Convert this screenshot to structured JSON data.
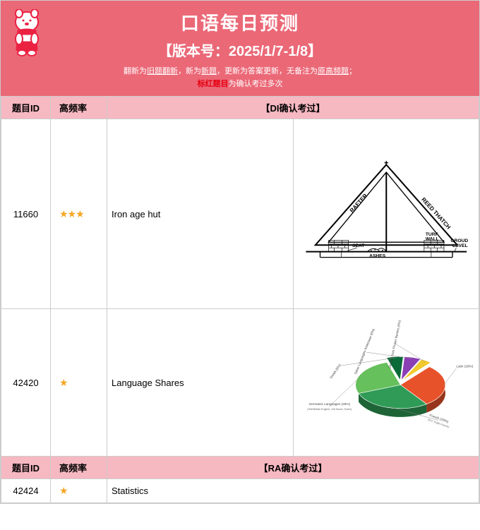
{
  "header": {
    "title": "口语每日预测",
    "version": "【版本号：2025/1/7-1/8】",
    "note1_pre": "翻新为",
    "note1_u1": "旧题翻新",
    "note1_mid1": "，新为",
    "note1_u2": "新题",
    "note1_mid2": "，更新为答案更新，无备注为",
    "note1_u3": "原高频题",
    "note1_post": "；",
    "note2_red": "标红题目",
    "note2_rest": "为确认考过多次"
  },
  "columns": {
    "id": "题目ID",
    "freq": "高频率",
    "di_header": "【DI确认考过】",
    "ra_header": "【RA确认考过】"
  },
  "rows": [
    {
      "id": "11660",
      "stars": 3,
      "name": "Iron age hut"
    },
    {
      "id": "42420",
      "stars": 1,
      "name": "Language Shares"
    },
    {
      "id": "42424",
      "stars": 1,
      "name": "Statistics"
    }
  ],
  "hut_diagram": {
    "labels": {
      "rafter": "RAFTER",
      "reed": "REED THATCH",
      "seat": "SEAT",
      "ashes": "ASHES",
      "turf": "TURF WALL",
      "ground": "GROUD LEVEL"
    },
    "stroke": "#000000",
    "fill": "#ffffff"
  },
  "pie_chart": {
    "slices": [
      {
        "label": "Latin (29%)",
        "value": 29,
        "color": "#e8522a"
      },
      {
        "label": "French (29%)",
        "value": 29,
        "color": "#2f9b56"
      },
      {
        "label": "Germanic Languages (26%)",
        "value": 26,
        "color": "#66c05b"
      },
      {
        "label": "Greek (6%)",
        "value": 6,
        "color": "#0a6a38"
      },
      {
        "label": "Other Languages /Unknown (6%)",
        "value": 6,
        "color": "#8b3fb5"
      },
      {
        "label": "Derived from Proper Names (4%)",
        "value": 4,
        "color": "#f2c92d"
      }
    ],
    "sublabels": {
      "germanic": "(Old/Middle English, Old Norse, Dutch)",
      "french": "(incl. Anglo-French)"
    },
    "label_fontsize": 7,
    "label_color": "#444444"
  },
  "colors": {
    "header_bg": "#eb6877",
    "th_bg": "#f6b8c1",
    "star": "#f5a623",
    "border": "#cccccc"
  }
}
